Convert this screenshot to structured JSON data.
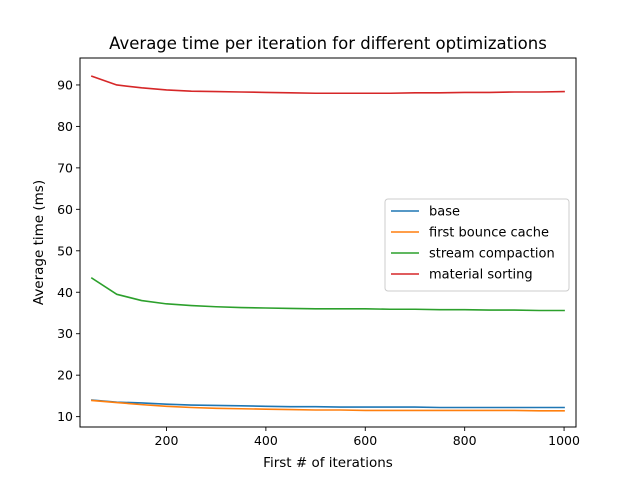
{
  "chart_data": {
    "type": "line",
    "title": "Average time per iteration for different optimizations",
    "xlabel": "First # of iterations",
    "ylabel": "Average time (ms)",
    "xlim": [
      26,
      1024
    ],
    "ylim": [
      7.5,
      96.5
    ],
    "xticks": [
      200,
      400,
      600,
      800,
      1000
    ],
    "yticks": [
      10,
      20,
      30,
      40,
      50,
      60,
      70,
      80,
      90
    ],
    "grid": false,
    "legend_position": "center-right",
    "x": [
      50,
      100,
      150,
      200,
      250,
      300,
      350,
      400,
      450,
      500,
      550,
      600,
      650,
      700,
      750,
      800,
      850,
      900,
      950,
      1000
    ],
    "series": [
      {
        "name": "base",
        "color": "#1f77b4",
        "values": [
          14.0,
          13.5,
          13.3,
          13.0,
          12.8,
          12.7,
          12.6,
          12.5,
          12.4,
          12.4,
          12.3,
          12.3,
          12.3,
          12.3,
          12.2,
          12.2,
          12.2,
          12.2,
          12.2,
          12.2
        ]
      },
      {
        "name": "first bounce cache",
        "color": "#ff7f0e",
        "values": [
          13.9,
          13.4,
          12.9,
          12.5,
          12.2,
          12.0,
          11.9,
          11.8,
          11.7,
          11.6,
          11.6,
          11.5,
          11.5,
          11.5,
          11.5,
          11.5,
          11.5,
          11.5,
          11.4,
          11.4
        ]
      },
      {
        "name": "stream compaction",
        "color": "#2ca02c",
        "values": [
          43.4,
          39.5,
          38.0,
          37.2,
          36.8,
          36.5,
          36.3,
          36.2,
          36.1,
          36.0,
          36.0,
          36.0,
          35.9,
          35.9,
          35.8,
          35.8,
          35.7,
          35.7,
          35.6,
          35.6
        ]
      },
      {
        "name": "material sorting",
        "color": "#d62728",
        "values": [
          92.1,
          90.0,
          89.3,
          88.8,
          88.5,
          88.4,
          88.3,
          88.2,
          88.1,
          88.0,
          88.0,
          88.0,
          88.0,
          88.1,
          88.1,
          88.2,
          88.2,
          88.3,
          88.3,
          88.4
        ]
      }
    ]
  }
}
